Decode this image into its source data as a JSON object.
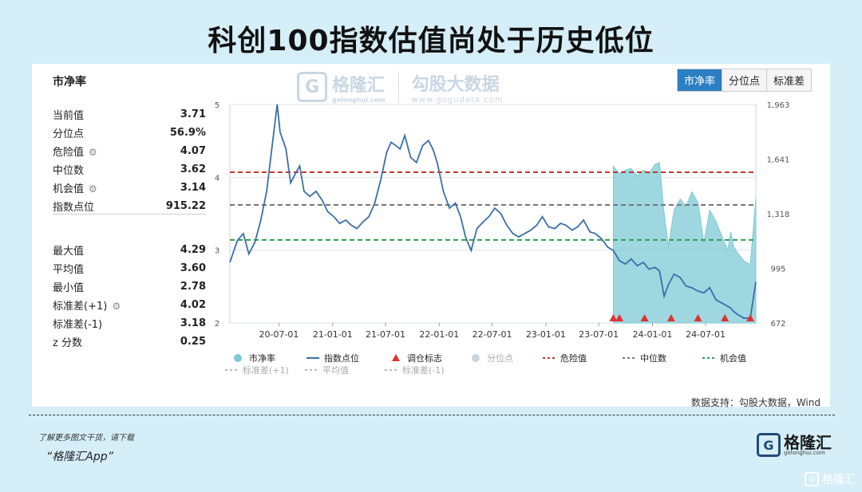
{
  "title": "科创100指数估值尚处于历史低位",
  "panel_title": "市净率",
  "stats_top": [
    {
      "label": "当前值",
      "value": "3.71",
      "gear": false
    },
    {
      "label": "分位点",
      "value": "56.9%",
      "gear": false
    },
    {
      "label": "危险值",
      "value": "4.07",
      "gear": true
    },
    {
      "label": "中位数",
      "value": "3.62",
      "gear": false
    },
    {
      "label": "机会值",
      "value": "3.14",
      "gear": true
    },
    {
      "label": "指数点位",
      "value": "915.22",
      "gear": false
    }
  ],
  "stats_bottom": [
    {
      "label": "最大值",
      "value": "4.29",
      "gear": false
    },
    {
      "label": "平均值",
      "value": "3.60",
      "gear": false
    },
    {
      "label": "最小值",
      "value": "2.78",
      "gear": false
    },
    {
      "label": "标准差(+1)",
      "value": "4.02",
      "gear": true
    },
    {
      "label": "标准差(-1)",
      "value": "3.18",
      "gear": false
    },
    {
      "label": "z 分数",
      "value": "0.25",
      "gear": false
    }
  ],
  "watermark": {
    "logo": "G",
    "name": "格隆汇",
    "sub": "gelonghui.com",
    "right_big": "勾股大数据",
    "right_small": "www.gogudata.com"
  },
  "tabs": [
    {
      "label": "市净率",
      "active": true
    },
    {
      "label": "分位点",
      "active": false
    },
    {
      "label": "标准差",
      "active": false
    }
  ],
  "source": "数据支持：勾股大数据，Wind",
  "promo_line1": "了解更多图文干货，请下载",
  "promo_line2": "“格隆汇App”",
  "brand": {
    "logo": "G",
    "name": "格隆汇",
    "sub": "gelonghui.com"
  },
  "corner_logo": "G",
  "corner_text": "格隆汇",
  "colors": {
    "pb": "#7ec9d6",
    "index": "#3b6fa8",
    "danger": "#c0392b",
    "median": "#777777",
    "opportunity": "#2e9e4f",
    "signal": "#e03030"
  },
  "chart_data": {
    "type": "line",
    "x_ticks": [
      "20-07-01",
      "21-01-01",
      "21-07-01",
      "22-01-01",
      "22-07-01",
      "23-01-01",
      "23-07-01",
      "24-01-01",
      "24-07-01"
    ],
    "x_start": "2020-01-15",
    "x_end": "2024-12-20",
    "y_left": {
      "range": [
        2,
        5
      ],
      "ticks": [
        "2",
        "3",
        "4",
        "5"
      ]
    },
    "y_right": {
      "range": [
        672,
        1963
      ],
      "ticks": [
        "672",
        "995",
        "1,318",
        "1,641",
        "1,963"
      ]
    },
    "reference_lines": {
      "danger": 4.07,
      "median": 3.62,
      "opportunity": 3.14
    },
    "legend": [
      "市净率",
      "指数点位",
      "调仓标志",
      "分位点",
      "危险值",
      "中位数",
      "机会值",
      "标准差(+1)",
      "平均值",
      "标准差(-1)"
    ],
    "series": [
      {
        "name": "指数点位",
        "x": [
          "2020-01-15",
          "2020-02-10",
          "2020-03-01",
          "2020-03-20",
          "2020-04-10",
          "2020-04-30",
          "2020-05-20",
          "2020-06-10",
          "2020-06-25",
          "2020-07-05",
          "2020-07-15",
          "2020-07-25",
          "2020-08-10",
          "2020-08-25",
          "2020-09-10",
          "2020-09-25",
          "2020-10-15",
          "2020-11-05",
          "2020-11-25",
          "2020-12-15",
          "2021-01-05",
          "2021-01-25",
          "2021-02-15",
          "2021-03-05",
          "2021-03-25",
          "2021-04-15",
          "2021-05-05",
          "2021-05-25",
          "2021-06-15",
          "2021-07-05",
          "2021-07-20",
          "2021-08-05",
          "2021-08-20",
          "2021-09-05",
          "2021-09-25",
          "2021-10-15",
          "2021-11-05",
          "2021-11-25",
          "2021-12-10",
          "2021-12-25",
          "2022-01-15",
          "2022-02-05",
          "2022-02-25",
          "2022-03-15",
          "2022-04-01",
          "2022-04-20",
          "2022-05-10",
          "2022-06-01",
          "2022-06-20",
          "2022-07-10",
          "2022-07-30",
          "2022-08-20",
          "2022-09-10",
          "2022-09-30",
          "2022-10-20",
          "2022-11-10",
          "2022-12-01",
          "2022-12-20",
          "2023-01-10",
          "2023-02-01",
          "2023-02-20",
          "2023-03-10",
          "2023-04-01",
          "2023-04-20",
          "2023-05-10",
          "2023-06-01",
          "2023-06-20",
          "2023-07-10",
          "2023-08-01",
          "2023-08-20",
          "2023-09-10",
          "2023-10-01",
          "2023-10-20",
          "2023-11-10",
          "2023-12-01",
          "2023-12-20",
          "2024-01-10",
          "2024-01-25",
          "2024-02-10",
          "2024-02-25",
          "2024-03-15",
          "2024-04-05",
          "2024-04-25",
          "2024-05-15",
          "2024-06-05",
          "2024-06-25",
          "2024-07-15",
          "2024-08-05",
          "2024-08-25",
          "2024-09-15",
          "2024-09-25",
          "2024-10-05",
          "2024-10-20",
          "2024-11-10",
          "2024-12-01",
          "2024-12-20"
        ],
        "values": [
          1030,
          1160,
          1200,
          1080,
          1150,
          1280,
          1450,
          1750,
          1963,
          1800,
          1750,
          1700,
          1500,
          1550,
          1600,
          1450,
          1420,
          1450,
          1400,
          1330,
          1300,
          1260,
          1280,
          1250,
          1230,
          1270,
          1300,
          1380,
          1520,
          1680,
          1740,
          1720,
          1700,
          1780,
          1650,
          1620,
          1720,
          1750,
          1700,
          1620,
          1450,
          1350,
          1380,
          1300,
          1180,
          1100,
          1230,
          1270,
          1300,
          1350,
          1320,
          1250,
          1200,
          1180,
          1200,
          1220,
          1250,
          1300,
          1240,
          1230,
          1260,
          1250,
          1220,
          1240,
          1280,
          1210,
          1200,
          1170,
          1120,
          1100,
          1040,
          1020,
          1050,
          1010,
          1030,
          990,
          1000,
          980,
          830,
          900,
          960,
          940,
          890,
          880,
          860,
          850,
          880,
          810,
          790,
          770,
          760,
          740,
          720,
          700,
          700,
          915
        ]
      },
      {
        "name": "市净率",
        "x": [
          "2023-08-20",
          "2023-09-10",
          "2023-10-01",
          "2023-10-20",
          "2023-11-10",
          "2023-12-01",
          "2023-12-20",
          "2024-01-10",
          "2024-01-25",
          "2024-02-10",
          "2024-02-25",
          "2024-03-15",
          "2024-04-05",
          "2024-04-25",
          "2024-05-15",
          "2024-06-05",
          "2024-06-25",
          "2024-07-15",
          "2024-08-05",
          "2024-08-25",
          "2024-09-15",
          "2024-09-25",
          "2024-10-05",
          "2024-10-20",
          "2024-11-10",
          "2024-12-01",
          "2024-12-20"
        ],
        "values": [
          4.15,
          4.05,
          4.1,
          4.12,
          4.02,
          4.1,
          4.05,
          4.18,
          4.2,
          3.5,
          3.05,
          3.55,
          3.7,
          3.6,
          3.8,
          3.65,
          3.1,
          3.55,
          3.4,
          3.2,
          3.0,
          3.25,
          3.05,
          2.95,
          2.85,
          2.8,
          3.71
        ]
      }
    ],
    "rebalance_markers": [
      "2023-08-20",
      "2023-09-10",
      "2023-12-05",
      "2024-03-05",
      "2024-06-05",
      "2024-09-05",
      "2024-12-01"
    ]
  }
}
